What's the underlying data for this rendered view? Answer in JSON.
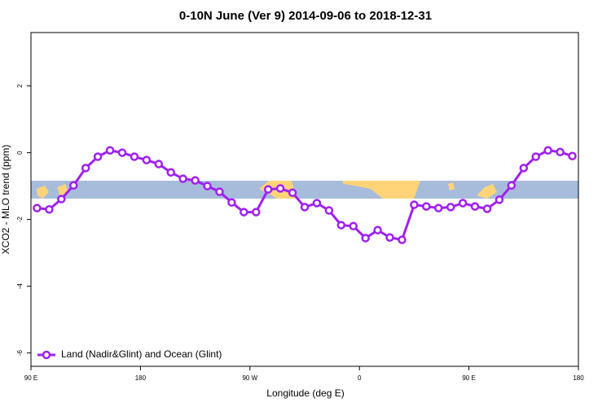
{
  "chart_data": {
    "type": "line",
    "title": "0-10N June (Ver 9)   2014-09-06 to 2018-12-31",
    "xlabel": "Longitude (deg E)",
    "ylabel": "XCO2 - MLO trend (ppm)",
    "x": [
      95,
      105,
      115,
      125,
      135,
      145,
      155,
      165,
      175,
      185,
      195,
      205,
      215,
      225,
      235,
      245,
      255,
      265,
      275,
      285,
      295,
      305,
      315,
      325,
      335,
      345,
      355,
      365,
      375,
      385,
      395,
      405,
      415,
      425,
      435,
      445,
      455,
      465,
      475,
      485,
      495,
      505,
      515,
      525,
      535
    ],
    "series": [
      {
        "name": "Land (Nadir&Glint) and Ocean (Glint)",
        "color": "#a020f0",
        "values": [
          -1.66,
          -1.7,
          -1.39,
          -0.98,
          -0.46,
          -0.12,
          0.07,
          0.0,
          -0.12,
          -0.22,
          -0.34,
          -0.59,
          -0.78,
          -0.83,
          -1.0,
          -1.17,
          -1.49,
          -1.78,
          -1.78,
          -1.1,
          -1.07,
          -1.2,
          -1.63,
          -1.51,
          -1.73,
          -2.17,
          -2.2,
          -2.56,
          -2.32,
          -2.54,
          -2.61,
          -1.56,
          -1.61,
          -1.66,
          -1.63,
          -1.51,
          -1.61,
          -1.68,
          -1.41,
          -0.98,
          -0.46,
          -0.12,
          0.07,
          0.02,
          -0.1
        ]
      }
    ],
    "xlim": [
      90,
      540
    ],
    "xticks": [
      {
        "value": 90,
        "label": "90 E"
      },
      {
        "value": 180,
        "label": "180"
      },
      {
        "value": 270,
        "label": "90 W"
      },
      {
        "value": 360,
        "label": "0"
      },
      {
        "value": 450,
        "label": "90 E"
      },
      {
        "value": 540,
        "label": "180"
      }
    ],
    "ylim": [
      -6.4,
      3.6
    ],
    "yticks": [
      -6,
      -4,
      -2,
      0,
      2
    ],
    "legend": "bottom-left"
  }
}
